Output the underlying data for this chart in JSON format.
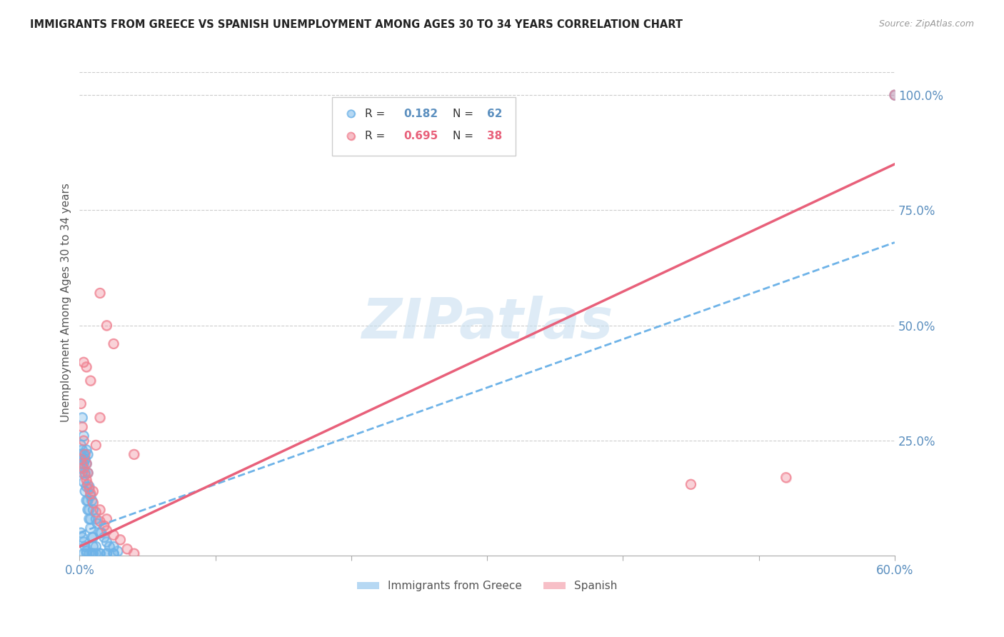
{
  "title": "IMMIGRANTS FROM GREECE VS SPANISH UNEMPLOYMENT AMONG AGES 30 TO 34 YEARS CORRELATION CHART",
  "source": "Source: ZipAtlas.com",
  "ylabel": "Unemployment Among Ages 30 to 34 years",
  "xlim": [
    0.0,
    0.6
  ],
  "ylim": [
    0.0,
    1.1
  ],
  "yticks_right": [
    0.25,
    0.5,
    0.75,
    1.0
  ],
  "ytick_right_labels": [
    "25.0%",
    "50.0%",
    "75.0%",
    "100.0%"
  ],
  "legend_val1": "0.182",
  "legend_nval1": "62",
  "legend_val2": "0.695",
  "legend_nval2": "38",
  "blue_color": "#6eb3e8",
  "pink_color": "#f08090",
  "pink_line_color": "#e8607a",
  "watermark_color": "#c8dff0",
  "blue_x": [
    0.002,
    0.003,
    0.005,
    0.004,
    0.006,
    0.001,
    0.002,
    0.003,
    0.004,
    0.005,
    0.006,
    0.007,
    0.008,
    0.009,
    0.01,
    0.012,
    0.013,
    0.015,
    0.016,
    0.018,
    0.02,
    0.022,
    0.025,
    0.028,
    0.001,
    0.002,
    0.003,
    0.004,
    0.005,
    0.006,
    0.007,
    0.008,
    0.009,
    0.01,
    0.001,
    0.002,
    0.003,
    0.004,
    0.005,
    0.01,
    0.012,
    0.015,
    0.02,
    0.025,
    0.001,
    0.002,
    0.003,
    0.004,
    0.005,
    0.006,
    0.007,
    0.008,
    0.01,
    0.012,
    0.003,
    0.005,
    0.007,
    0.009,
    0.015,
    0.02,
    0.025,
    0.6
  ],
  "blue_y": [
    0.3,
    0.26,
    0.23,
    0.21,
    0.22,
    0.24,
    0.23,
    0.22,
    0.21,
    0.2,
    0.18,
    0.15,
    0.13,
    0.12,
    0.1,
    0.08,
    0.07,
    0.05,
    0.05,
    0.04,
    0.03,
    0.02,
    0.02,
    0.01,
    0.19,
    0.18,
    0.16,
    0.14,
    0.12,
    0.1,
    0.08,
    0.06,
    0.04,
    0.02,
    0.05,
    0.04,
    0.03,
    0.02,
    0.01,
    0.005,
    0.005,
    0.005,
    0.005,
    0.005,
    0.22,
    0.21,
    0.2,
    0.18,
    0.15,
    0.12,
    0.1,
    0.08,
    0.04,
    0.02,
    0.005,
    0.005,
    0.005,
    0.005,
    0.005,
    0.005,
    0.005,
    1.0
  ],
  "pink_x": [
    0.015,
    0.02,
    0.025,
    0.003,
    0.008,
    0.012,
    0.04,
    0.005,
    0.001,
    0.002,
    0.003,
    0.004,
    0.005,
    0.006,
    0.007,
    0.008,
    0.01,
    0.012,
    0.015,
    0.018,
    0.02,
    0.025,
    0.03,
    0.035,
    0.04,
    0.001,
    0.002,
    0.003,
    0.004,
    0.005,
    0.006,
    0.01,
    0.015,
    0.02,
    0.015,
    0.45,
    0.52,
    0.6
  ],
  "pink_y": [
    0.57,
    0.5,
    0.46,
    0.42,
    0.38,
    0.24,
    0.22,
    0.41,
    0.21,
    0.2,
    0.19,
    0.175,
    0.165,
    0.155,
    0.145,
    0.135,
    0.115,
    0.095,
    0.075,
    0.065,
    0.055,
    0.045,
    0.035,
    0.015,
    0.005,
    0.33,
    0.28,
    0.25,
    0.22,
    0.2,
    0.18,
    0.14,
    0.1,
    0.08,
    0.3,
    0.155,
    0.17,
    1.0
  ],
  "blue_line": {
    "x0": 0.0,
    "x1": 0.6,
    "y0": 0.05,
    "y1": 0.68
  },
  "pink_line": {
    "x0": 0.0,
    "x1": 0.6,
    "y0": 0.02,
    "y1": 0.85
  }
}
